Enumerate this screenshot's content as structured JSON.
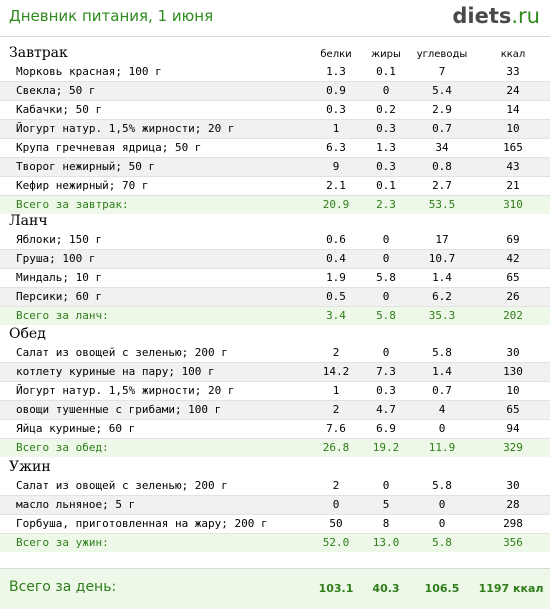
{
  "header": {
    "title": "Дневник питания, 1 июня",
    "logo_main": "diets",
    "logo_tld": ".ru"
  },
  "columns": {
    "protein": "белки",
    "fat": "жиры",
    "carbs": "углеводы",
    "kcal": "ккал"
  },
  "meals": [
    {
      "name": "Завтрак",
      "items": [
        {
          "name": "Морковь красная; 100 г",
          "protein": "1.3",
          "fat": "0.1",
          "carbs": "7",
          "kcal": "33"
        },
        {
          "name": "Свекла; 50 г",
          "protein": "0.9",
          "fat": "0",
          "carbs": "5.4",
          "kcal": "24"
        },
        {
          "name": "Кабачки; 50 г",
          "protein": "0.3",
          "fat": "0.2",
          "carbs": "2.9",
          "kcal": "14"
        },
        {
          "name": "Йогурт натур. 1,5% жирности; 20 г",
          "protein": "1",
          "fat": "0.3",
          "carbs": "0.7",
          "kcal": "10"
        },
        {
          "name": "Крупа гречневая ядрица; 50 г",
          "protein": "6.3",
          "fat": "1.3",
          "carbs": "34",
          "kcal": "165"
        },
        {
          "name": "Творог нежирный; 50 г",
          "protein": "9",
          "fat": "0.3",
          "carbs": "0.8",
          "kcal": "43"
        },
        {
          "name": "Кефир нежирный; 70 г",
          "protein": "2.1",
          "fat": "0.1",
          "carbs": "2.7",
          "kcal": "21"
        }
      ],
      "total": {
        "name": "Всего за завтрак:",
        "protein": "20.9",
        "fat": "2.3",
        "carbs": "53.5",
        "kcal": "310"
      }
    },
    {
      "name": "Ланч",
      "items": [
        {
          "name": "Яблоки; 150 г",
          "protein": "0.6",
          "fat": "0",
          "carbs": "17",
          "kcal": "69"
        },
        {
          "name": "Груша; 100 г",
          "protein": "0.4",
          "fat": "0",
          "carbs": "10.7",
          "kcal": "42"
        },
        {
          "name": "Миндаль; 10 г",
          "protein": "1.9",
          "fat": "5.8",
          "carbs": "1.4",
          "kcal": "65"
        },
        {
          "name": "Персики; 60 г",
          "protein": "0.5",
          "fat": "0",
          "carbs": "6.2",
          "kcal": "26"
        }
      ],
      "total": {
        "name": "Всего за ланч:",
        "protein": "3.4",
        "fat": "5.8",
        "carbs": "35.3",
        "kcal": "202"
      }
    },
    {
      "name": "Обед",
      "items": [
        {
          "name": "Салат из овощей с зеленью; 200 г",
          "protein": "2",
          "fat": "0",
          "carbs": "5.8",
          "kcal": "30"
        },
        {
          "name": "котлету куриные на пару; 100 г",
          "protein": "14.2",
          "fat": "7.3",
          "carbs": "1.4",
          "kcal": "130"
        },
        {
          "name": "Йогурт натур. 1,5% жирности; 20 г",
          "protein": "1",
          "fat": "0.3",
          "carbs": "0.7",
          "kcal": "10"
        },
        {
          "name": "овощи тушенные с грибами; 100 г",
          "protein": "2",
          "fat": "4.7",
          "carbs": "4",
          "kcal": "65"
        },
        {
          "name": "Яйца куриные; 60 г",
          "protein": "7.6",
          "fat": "6.9",
          "carbs": "0",
          "kcal": "94"
        }
      ],
      "total": {
        "name": "Всего за обед:",
        "protein": "26.8",
        "fat": "19.2",
        "carbs": "11.9",
        "kcal": "329"
      }
    },
    {
      "name": "Ужин",
      "items": [
        {
          "name": "Салат из овощей с зеленью; 200 г",
          "protein": "2",
          "fat": "0",
          "carbs": "5.8",
          "kcal": "30"
        },
        {
          "name": "масло льняное; 5 г",
          "protein": "0",
          "fat": "5",
          "carbs": "0",
          "kcal": "28"
        },
        {
          "name": "Горбуша, приготовленная на жару; 200 г",
          "protein": "50",
          "fat": "8",
          "carbs": "0",
          "kcal": "298"
        }
      ],
      "total": {
        "name": "Всего за ужин:",
        "protein": "52.0",
        "fat": "13.0",
        "carbs": "5.8",
        "kcal": "356"
      }
    }
  ],
  "day_total": {
    "label": "Всего за день:",
    "protein": "103.1",
    "fat": "40.3",
    "carbs": "106.5",
    "kcal": "1197 ккал"
  }
}
